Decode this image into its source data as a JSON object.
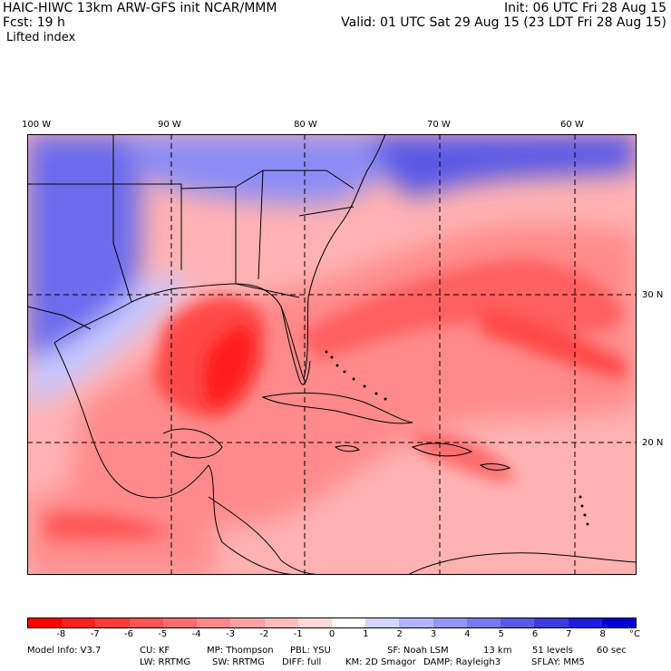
{
  "header": {
    "model_line": "HAIC-HIWC 13km ARW-GFS init   NCAR/MMM",
    "init_line": "Init: 06 UTC Fri 28 Aug 15",
    "fcst_line": "Fcst:    19 h",
    "valid_line": "Valid: 01 UTC Sat 29 Aug 15 (23 LDT Fri 28 Aug 15)",
    "field_name": "Lifted index"
  },
  "map": {
    "lon_labels": [
      "100 W",
      "90 W",
      "80 W",
      "70 W",
      "60 W"
    ],
    "lat_labels": [
      "30 N",
      "20 N"
    ],
    "region": "Southeast US, Gulf of Mexico, Caribbean, western Atlantic"
  },
  "colorbar": {
    "ticks": [
      "-8",
      "-7",
      "-6",
      "-5",
      "-4",
      "-3",
      "-2",
      "-1",
      "0",
      "1",
      "2",
      "3",
      "4",
      "5",
      "6",
      "7",
      "8"
    ],
    "unit": "°C",
    "colors": [
      "#ff0000",
      "#ff2020",
      "#ff3c3c",
      "#ff5555",
      "#ff6e6e",
      "#ff8888",
      "#ffa2a2",
      "#ffbcbc",
      "#ffd8d8",
      "#ffffff",
      "#d4d4ff",
      "#b4b4ff",
      "#9696f8",
      "#7878f0",
      "#5a5ae8",
      "#3c3ce0",
      "#1e1ed8",
      "#0000d0"
    ]
  },
  "model_info": {
    "line1": [
      "Model Info: V3.7",
      "CU: KF",
      "MP: Thompson",
      "PBL: YSU",
      "SF: Noah LSM",
      "13 km",
      "51 levels",
      "60 sec"
    ],
    "line2": [
      "LW: RRTMG",
      "SW: RRTMG",
      "DIFF: full",
      "KM: 2D Smagor",
      "DAMP: Rayleigh3",
      "SFLAY: MM5"
    ]
  }
}
